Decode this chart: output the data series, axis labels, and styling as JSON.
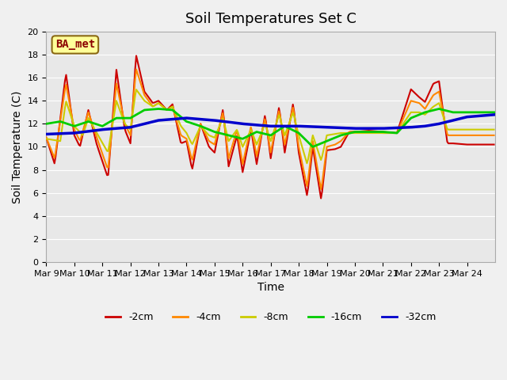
{
  "title": "Soil Temperatures Set C",
  "xlabel": "Time",
  "ylabel": "Soil Temperature (C)",
  "annotation": "BA_met",
  "ylim": [
    0,
    20
  ],
  "yticks": [
    0,
    2,
    4,
    6,
    8,
    10,
    12,
    14,
    16,
    18,
    20
  ],
  "x_labels": [
    "Mar 9",
    "Mar 10",
    "Mar 11",
    "Mar 12",
    "Mar 13",
    "Mar 14",
    "Mar 15",
    "Mar 16",
    "Mar 17",
    "Mar 18",
    "Mar 19",
    "Mar 20",
    "Mar 21",
    "Mar 22",
    "Mar 23",
    "Mar 24"
  ],
  "colors": {
    "-2cm": "#cc0000",
    "-4cm": "#ff8800",
    "-8cm": "#cccc00",
    "-16cm": "#00cc00",
    "-32cm": "#0000cc"
  },
  "line_widths": {
    "-2cm": 1.5,
    "-4cm": 1.5,
    "-8cm": 1.5,
    "-16cm": 2.0,
    "-32cm": 2.5
  },
  "background_color": "#e8e8e8",
  "fig_background": "#f0f0f0",
  "grid_color": "#ffffff",
  "title_fontsize": 13,
  "axis_fontsize": 10,
  "tick_fontsize": 8
}
